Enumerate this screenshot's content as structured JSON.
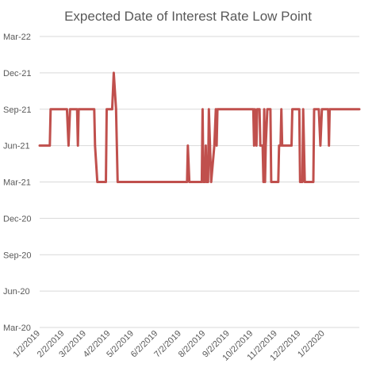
{
  "chart_data": {
    "type": "line",
    "title": "Expected Date of Interest Rate Low Point",
    "xlabel": "",
    "ylabel": "",
    "grid": true,
    "legend": "none",
    "x_ticks": [
      "1/2/2019",
      "2/2/2019",
      "3/2/2019",
      "4/2/2019",
      "5/2/2019",
      "6/2/2019",
      "7/2/2019",
      "8/2/2019",
      "9/2/2019",
      "10/2/2019",
      "11/2/2019",
      "12/2/2019",
      "1/2/2020"
    ],
    "y_ticks": [
      "Mar-22",
      "Dec-21",
      "Sep-21",
      "Jun-21",
      "Mar-21",
      "Dec-20",
      "Sep-20",
      "Jun-20",
      "Mar-20"
    ],
    "xlim": [
      "2019-01-01",
      "2020-02-15"
    ],
    "ylim": [
      "Mar-20",
      "Mar-22"
    ],
    "series": [
      {
        "color": "#c0504d",
        "points": [
          [
            "2019-01-01",
            "Jun-21"
          ],
          [
            "2019-01-14",
            "Jun-21"
          ],
          [
            "2019-01-15",
            "Sep-21"
          ],
          [
            "2019-02-05",
            "Sep-21"
          ],
          [
            "2019-02-07",
            "Jun-21"
          ],
          [
            "2019-02-09",
            "Sep-21"
          ],
          [
            "2019-02-18",
            "Sep-21"
          ],
          [
            "2019-02-19",
            "Jun-21"
          ],
          [
            "2019-02-20",
            "Sep-21"
          ],
          [
            "2019-03-12",
            "Sep-21"
          ],
          [
            "2019-03-13",
            "Jun-21"
          ],
          [
            "2019-03-16",
            "Mar-21"
          ],
          [
            "2019-03-27",
            "Mar-21"
          ],
          [
            "2019-03-28",
            "Sep-21"
          ],
          [
            "2019-04-04",
            "Sep-21"
          ],
          [
            "2019-04-06",
            "Dec-21"
          ],
          [
            "2019-04-09",
            "Sep-21"
          ],
          [
            "2019-04-11",
            "Mar-21"
          ],
          [
            "2019-07-09",
            "Mar-21"
          ],
          [
            "2019-07-10",
            "Jun-21"
          ],
          [
            "2019-07-12",
            "Mar-21"
          ],
          [
            "2019-07-28",
            "Mar-21"
          ],
          [
            "2019-07-29",
            "Sep-21"
          ],
          [
            "2019-07-30",
            "Mar-21"
          ],
          [
            "2019-08-01",
            "Mar-21"
          ],
          [
            "2019-08-02",
            "Jun-21"
          ],
          [
            "2019-08-03",
            "Mar-21"
          ],
          [
            "2019-08-05",
            "Mar-21"
          ],
          [
            "2019-08-06",
            "Sep-21"
          ],
          [
            "2019-08-09",
            "Mar-21"
          ],
          [
            "2019-08-13",
            "Jun-21"
          ],
          [
            "2019-08-15",
            "Sep-21"
          ],
          [
            "2019-08-16",
            "Jun-21"
          ],
          [
            "2019-08-17",
            "Sep-21"
          ],
          [
            "2019-10-02",
            "Sep-21"
          ],
          [
            "2019-10-03",
            "Jun-21"
          ],
          [
            "2019-10-04",
            "Sep-21"
          ],
          [
            "2019-10-06",
            "Jun-21"
          ],
          [
            "2019-10-07",
            "Sep-21"
          ],
          [
            "2019-10-10",
            "Sep-21"
          ],
          [
            "2019-10-11",
            "Jun-21"
          ],
          [
            "2019-10-14",
            "Jun-21"
          ],
          [
            "2019-10-15",
            "Mar-21"
          ],
          [
            "2019-10-16",
            "Sep-21"
          ],
          [
            "2019-10-17",
            "Mar-21"
          ],
          [
            "2019-10-18",
            "Jun-21"
          ],
          [
            "2019-10-20",
            "Sep-21"
          ],
          [
            "2019-10-24",
            "Sep-21"
          ],
          [
            "2019-10-25",
            "Mar-21"
          ],
          [
            "2019-11-03",
            "Mar-21"
          ],
          [
            "2019-11-04",
            "Jun-21"
          ],
          [
            "2019-11-06",
            "Jun-21"
          ],
          [
            "2019-11-07",
            "Sep-21"
          ],
          [
            "2019-11-08",
            "Jun-21"
          ],
          [
            "2019-11-20",
            "Jun-21"
          ],
          [
            "2019-11-21",
            "Sep-21"
          ],
          [
            "2019-11-30",
            "Sep-21"
          ],
          [
            "2019-12-01",
            "Mar-21"
          ],
          [
            "2019-12-04",
            "Mar-21"
          ],
          [
            "2019-12-05",
            "Sep-21"
          ],
          [
            "2019-12-07",
            "Mar-21"
          ],
          [
            "2019-12-18",
            "Mar-21"
          ],
          [
            "2019-12-19",
            "Sep-21"
          ],
          [
            "2019-12-25",
            "Sep-21"
          ],
          [
            "2019-12-27",
            "Jun-21"
          ],
          [
            "2019-12-29",
            "Sep-21"
          ],
          [
            "2020-01-06",
            "Sep-21"
          ],
          [
            "2020-01-07",
            "Jun-21"
          ],
          [
            "2020-01-08",
            "Sep-21"
          ],
          [
            "2020-02-15",
            "Sep-21"
          ]
        ]
      }
    ]
  }
}
